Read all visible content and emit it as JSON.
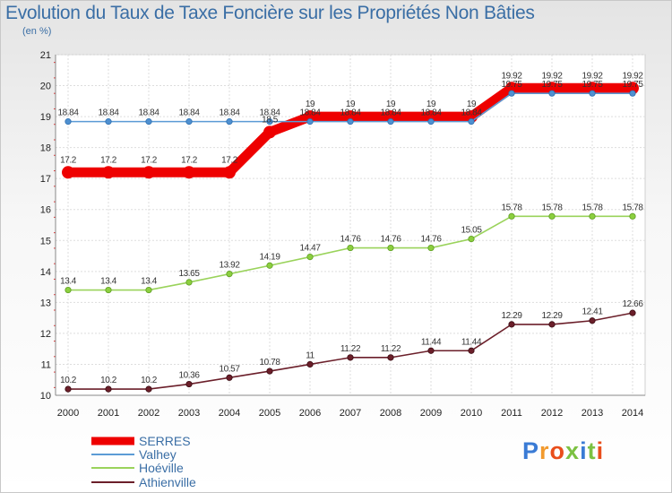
{
  "title": "Evolution du Taux de Taxe Foncière sur les Propriétés Non Bâties",
  "subtitle": "(en %)",
  "logo": "Proxiti",
  "colors": {
    "SERRES": "#ee0000",
    "Valhey": "#5b9bd5",
    "Hoéville": "#9ad35b",
    "Athienville": "#6b1f2a"
  },
  "chart_data": {
    "type": "line",
    "title": "Evolution du Taux de Taxe Foncière sur les Propriétés Non Bâties",
    "ylabel": "(en %)",
    "xlabel": "",
    "x": [
      "2000",
      "2001",
      "2002",
      "2003",
      "2004",
      "2005",
      "2006",
      "2007",
      "2008",
      "2009",
      "2010",
      "2011",
      "2012",
      "2013",
      "2014"
    ],
    "ylim": [
      10,
      21
    ],
    "yticks": [
      "10",
      "11",
      "12",
      "13",
      "14",
      "15",
      "16",
      "17",
      "18",
      "19",
      "20",
      "21"
    ],
    "grid": true,
    "legend": "bottom-left",
    "series": [
      {
        "name": "SERRES",
        "values": [
          17.2,
          17.2,
          17.2,
          17.2,
          17.2,
          18.5,
          19,
          19,
          19,
          19,
          19,
          19.92,
          19.92,
          19.92,
          19.92
        ],
        "labels": [
          "17.2",
          "17.2",
          "17.2",
          "17.2",
          "17.2",
          "18.5",
          "19",
          "19",
          "19",
          "19",
          "19",
          "19.92",
          "19.92",
          "19.92",
          "19.92"
        ]
      },
      {
        "name": "Valhey",
        "values": [
          18.84,
          18.84,
          18.84,
          18.84,
          18.84,
          18.84,
          18.84,
          18.84,
          18.84,
          18.84,
          18.84,
          19.75,
          19.75,
          19.75,
          19.75
        ],
        "labels": [
          "18.84",
          "18.84",
          "18.84",
          "18.84",
          "18.84",
          "18.84",
          "18.84",
          "18.84",
          "18.84",
          "18.84",
          "18.84",
          "19.75",
          "19.75",
          "19.75",
          "19.75"
        ]
      },
      {
        "name": "Hoéville",
        "values": [
          13.4,
          13.4,
          13.4,
          13.65,
          13.92,
          14.19,
          14.47,
          14.76,
          14.76,
          14.76,
          15.05,
          15.78,
          15.78,
          15.78,
          15.78
        ],
        "labels": [
          "13.4",
          "13.4",
          "13.4",
          "13.65",
          "13.92",
          "14.19",
          "14.47",
          "14.76",
          "14.76",
          "14.76",
          "15.05",
          "15.78",
          "15.78",
          "15.78",
          "15.78"
        ]
      },
      {
        "name": "Athienville",
        "values": [
          10.2,
          10.2,
          10.2,
          10.36,
          10.57,
          10.78,
          11,
          11.22,
          11.22,
          11.44,
          11.44,
          12.29,
          12.29,
          12.41,
          12.66
        ],
        "labels": [
          "10.2",
          "10.2",
          "10.2",
          "10.36",
          "10.57",
          "10.78",
          "11",
          "11.22",
          "11.22",
          "11.44",
          "11.44",
          "12.29",
          "12.29",
          "12.41",
          "12.66"
        ]
      }
    ]
  }
}
